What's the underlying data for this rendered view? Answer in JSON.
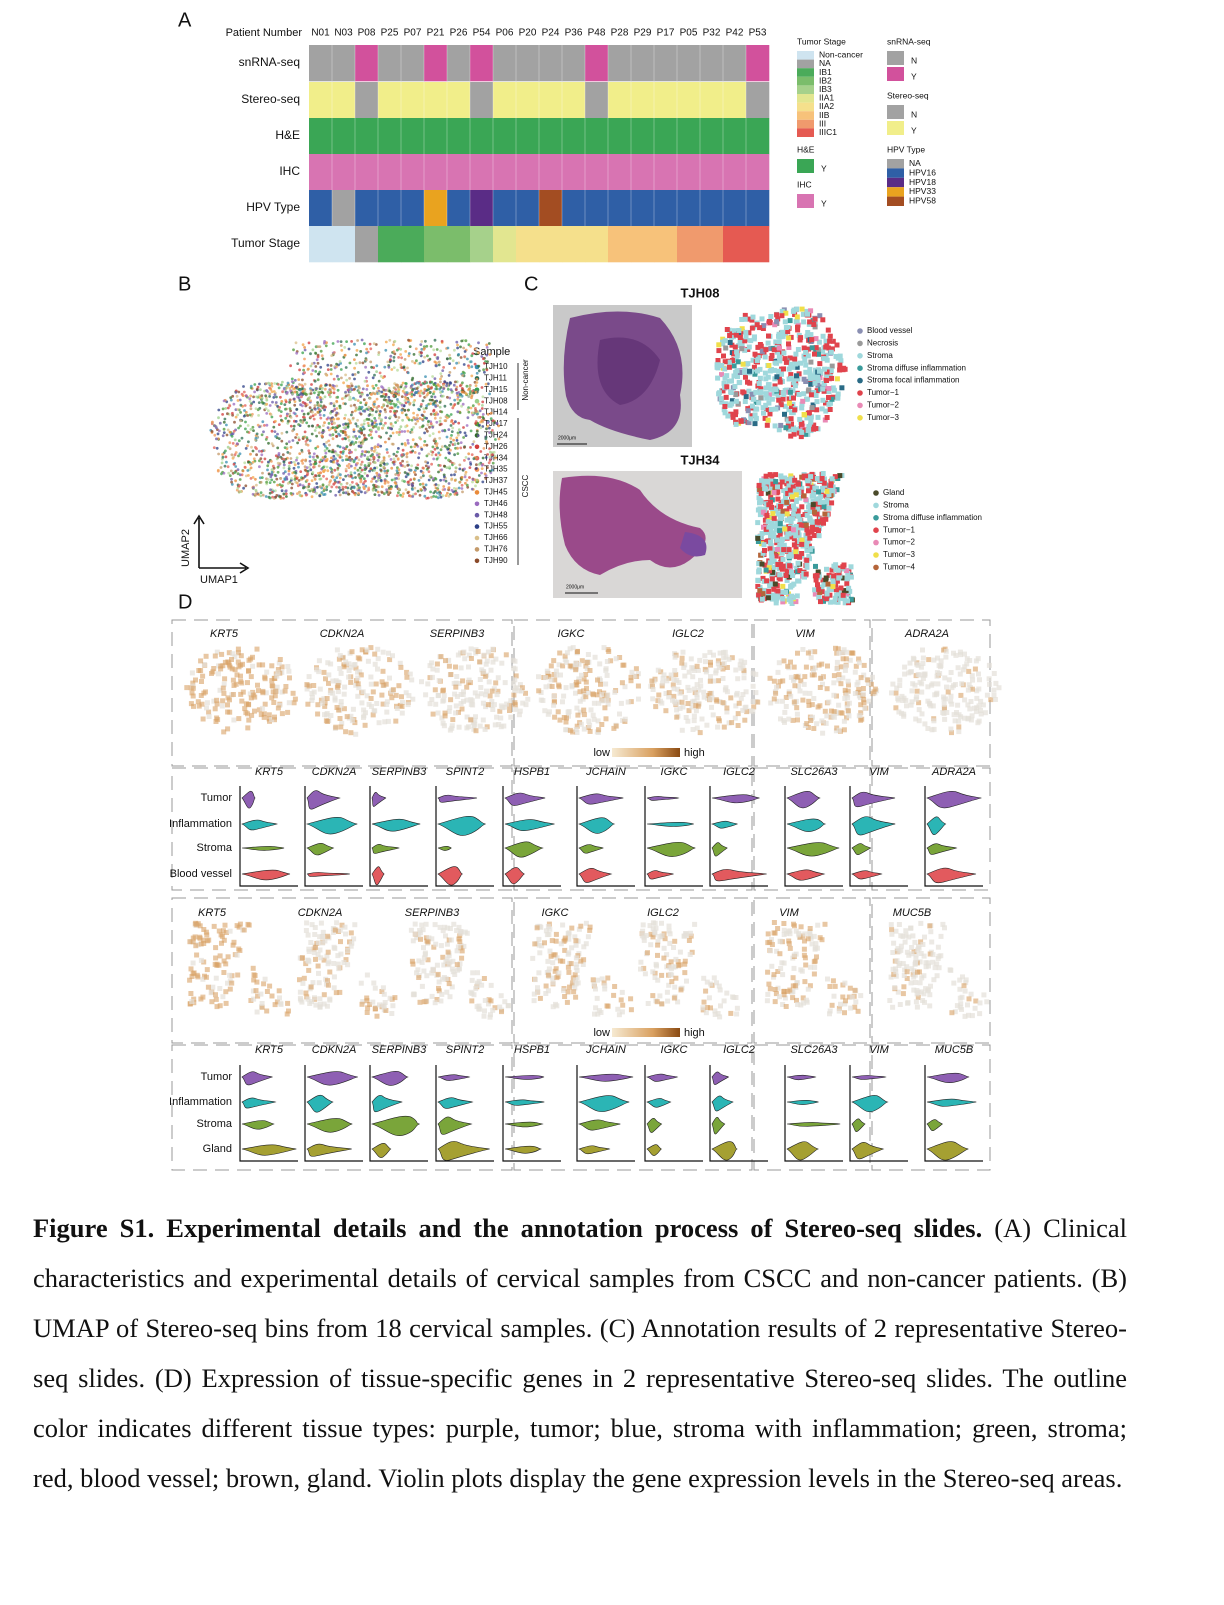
{
  "panel_a": {
    "label": "A",
    "header": "Patient Number",
    "patients": [
      "N01",
      "N03",
      "P08",
      "P25",
      "P07",
      "P21",
      "P26",
      "P54",
      "P06",
      "P20",
      "P24",
      "P36",
      "P48",
      "P28",
      "P29",
      "P17",
      "P05",
      "P32",
      "P42",
      "P53"
    ],
    "tracks": [
      {
        "name": "snRNA-seq",
        "levels": [
          {
            "label": "N",
            "color": "#a2a2a2"
          },
          {
            "label": "Y",
            "color": "#d2519c"
          }
        ],
        "values": [
          "N",
          "N",
          "Y",
          "N",
          "N",
          "Y",
          "N",
          "Y",
          "N",
          "N",
          "N",
          "N",
          "Y",
          "N",
          "N",
          "N",
          "N",
          "N",
          "N",
          "Y"
        ]
      },
      {
        "name": "Stereo-seq",
        "levels": [
          {
            "label": "N",
            "color": "#a2a2a2"
          },
          {
            "label": "Y",
            "color": "#f1ee8a"
          }
        ],
        "values": [
          "Y",
          "Y",
          "N",
          "Y",
          "Y",
          "Y",
          "Y",
          "N",
          "Y",
          "Y",
          "Y",
          "Y",
          "N",
          "Y",
          "Y",
          "Y",
          "Y",
          "Y",
          "Y",
          "N"
        ]
      },
      {
        "name": "H&E",
        "levels": [
          {
            "label": "Y",
            "color": "#3aa655"
          }
        ],
        "values": [
          "Y",
          "Y",
          "Y",
          "Y",
          "Y",
          "Y",
          "Y",
          "Y",
          "Y",
          "Y",
          "Y",
          "Y",
          "Y",
          "Y",
          "Y",
          "Y",
          "Y",
          "Y",
          "Y",
          "Y"
        ]
      },
      {
        "name": "IHC",
        "levels": [
          {
            "label": "Y",
            "color": "#d874b2"
          }
        ],
        "values": [
          "Y",
          "Y",
          "Y",
          "Y",
          "Y",
          "Y",
          "Y",
          "Y",
          "Y",
          "Y",
          "Y",
          "Y",
          "Y",
          "Y",
          "Y",
          "Y",
          "Y",
          "Y",
          "Y",
          "Y"
        ]
      },
      {
        "name": "HPV Type",
        "levels": [
          {
            "label": "NA",
            "color": "#a2a2a2"
          },
          {
            "label": "HPV16",
            "color": "#2f5fa6"
          },
          {
            "label": "HPV18",
            "color": "#5a2c86"
          },
          {
            "label": "HPV33",
            "color": "#e9a31f"
          },
          {
            "label": "HPV58",
            "color": "#a34d22"
          }
        ],
        "values": [
          "HPV16",
          "NA",
          "HPV16",
          "HPV16",
          "HPV16",
          "HPV33",
          "HPV16",
          "HPV18",
          "HPV16",
          "HPV16",
          "HPV58",
          "HPV16",
          "HPV16",
          "HPV16",
          "HPV16",
          "HPV16",
          "HPV16",
          "HPV16",
          "HPV16",
          "HPV16"
        ]
      },
      {
        "name": "Tumor Stage",
        "levels": [
          {
            "label": "Non-cancer",
            "color": "#cfe4f0"
          },
          {
            "label": "NA",
            "color": "#a2a2a2"
          },
          {
            "label": "IB1",
            "color": "#4bab5a"
          },
          {
            "label": "IB2",
            "color": "#7bbd6b"
          },
          {
            "label": "IB3",
            "color": "#a6d18b"
          },
          {
            "label": "IIA1",
            "color": "#e2e690"
          },
          {
            "label": "IIA2",
            "color": "#f5e08c"
          },
          {
            "label": "IIB",
            "color": "#f7c27a"
          },
          {
            "label": "III",
            "color": "#f09a6d"
          },
          {
            "label": "IIIC1",
            "color": "#e55a52"
          }
        ],
        "values": [
          "Non-cancer",
          "Non-cancer",
          "NA",
          "IB1",
          "IB1",
          "IB2",
          "IB2",
          "IB3",
          "IIA1",
          "IIA2",
          "IIA2",
          "IIA2",
          "IIA2",
          "IIB",
          "IIB",
          "IIB",
          "III",
          "III",
          "IIIC1",
          "IIIC1"
        ]
      }
    ]
  },
  "panel_b": {
    "label": "B",
    "x_label": "UMAP1",
    "y_label": "UMAP2",
    "legend_title": "Sample",
    "groups": [
      "Non-cancer",
      "CSCC"
    ],
    "samples": [
      {
        "name": "TJH10",
        "color": "#3a8fb0"
      },
      {
        "name": "TJH11",
        "color": "#2d6e52"
      },
      {
        "name": "TJH15",
        "color": "#3aa14c"
      },
      {
        "name": "TJH08",
        "color": "#9ccf8a"
      },
      {
        "name": "TJH14",
        "color": "#b9dc9c"
      },
      {
        "name": "TJH17",
        "color": "#4e9a3a"
      },
      {
        "name": "TJH24",
        "color": "#2f6a2a"
      },
      {
        "name": "TJH26",
        "color": "#d23b3b"
      },
      {
        "name": "TJH34",
        "color": "#e3615a"
      },
      {
        "name": "TJH35",
        "color": "#f09a5a"
      },
      {
        "name": "TJH37",
        "color": "#f3a64a"
      },
      {
        "name": "TJH45",
        "color": "#e98a3a"
      },
      {
        "name": "TJH46",
        "color": "#9a6bbf"
      },
      {
        "name": "TJH48",
        "color": "#6a5aa8"
      },
      {
        "name": "TJH55",
        "color": "#2c3f86"
      },
      {
        "name": "TJH66",
        "color": "#d9bf8a"
      },
      {
        "name": "TJH76",
        "color": "#c49a6a"
      },
      {
        "name": "TJH90",
        "color": "#8a4a2a"
      }
    ]
  },
  "panel_c": {
    "label": "C",
    "slides": [
      {
        "title": "TJH08",
        "scale_bar": "2000μm",
        "legend": [
          {
            "label": "Blood vessel",
            "color": "#8a8fb2"
          },
          {
            "label": "Necrosis",
            "color": "#9a9a9a"
          },
          {
            "label": "Stroma",
            "color": "#9fd8dc"
          },
          {
            "label": "Stroma diffuse inflammation",
            "color": "#3a9b9b"
          },
          {
            "label": "Stroma focal inflammation",
            "color": "#2a6b86"
          },
          {
            "label": "Tumor−1",
            "color": "#e0434c"
          },
          {
            "label": "Tumor−2",
            "color": "#e98ab6"
          },
          {
            "label": "Tumor−3",
            "color": "#f0df4a"
          }
        ]
      },
      {
        "title": "TJH34",
        "scale_bar": "2000μm",
        "legend": [
          {
            "label": "Gland",
            "color": "#4a4a2a"
          },
          {
            "label": "Stroma",
            "color": "#9fd8dc"
          },
          {
            "label": "Stroma diffuse inflammation",
            "color": "#3a9b9b"
          },
          {
            "label": "Tumor−1",
            "color": "#e0434c"
          },
          {
            "label": "Tumor−2",
            "color": "#e98ab6"
          },
          {
            "label": "Tumor−3",
            "color": "#f0df4a"
          },
          {
            "label": "Tumor−4",
            "color": "#b5653a"
          }
        ]
      }
    ]
  },
  "panel_d": {
    "label": "D",
    "slides": [
      {
        "spatial_genes": [
          "KRT5",
          "CDKN2A",
          "SERPINB3",
          "IGKC",
          "IGLC2",
          "VIM",
          "ADRA2A"
        ],
        "colorbar": {
          "low": "low",
          "high": "high"
        },
        "violin_genes": [
          "KRT5",
          "CDKN2A",
          "SERPINB3",
          "SPINT2",
          "HSPB1",
          "JCHAIN",
          "IGKC",
          "IGLC2",
          "SLC26A3",
          "VIM",
          "ADRA2A"
        ],
        "groups": [
          "Tumor",
          "Inflammation",
          "Stroma",
          "Blood vessel"
        ]
      },
      {
        "spatial_genes": [
          "KRT5",
          "CDKN2A",
          "SERPINB3",
          "IGKC",
          "IGLC2",
          "VIM",
          "MUC5B"
        ],
        "colorbar": {
          "low": "low",
          "high": "high"
        },
        "violin_genes": [
          "KRT5",
          "CDKN2A",
          "SERPINB3",
          "SPINT2",
          "HSPB1",
          "JCHAIN",
          "IGKC",
          "IGLC2",
          "SLC26A3",
          "VIM",
          "MUC5B"
        ],
        "groups": [
          "Tumor",
          "Inflammation",
          "Stroma",
          "Gland"
        ]
      }
    ]
  },
  "caption": {
    "title": "Figure S1. Experimental details and the annotation process of Stereo-seq slides.",
    "text": "(A) Clinical characteristics and experimental details of cervical samples from CSCC and non-cancer patients. (B) UMAP of Stereo-seq bins from 18 cervical samples. (C) Annotation results of 2 representative Stereo-seq slides. (D) Expression of tissue-specific genes in 2 representative Stereo-seq slides. The outline color indicates different tissue types: purple, tumor; blue, stroma with inflammation; green, stroma; red, blood vessel; brown, gland. Violin plots display the gene expression levels in the Stereo-seq areas."
  }
}
